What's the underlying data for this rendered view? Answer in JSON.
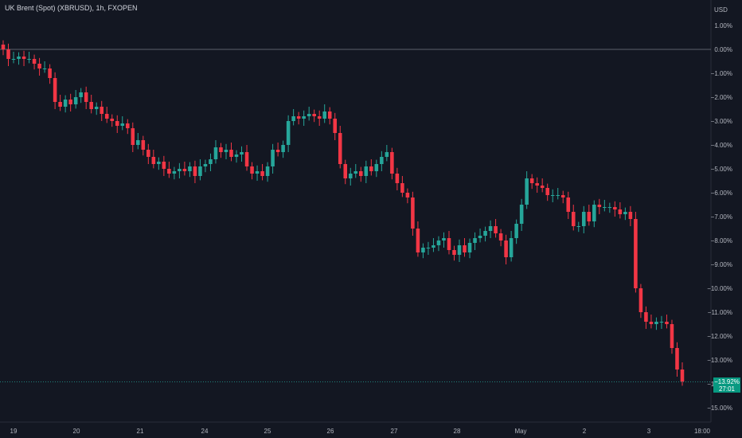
{
  "header": {
    "title": "UK Brent (Spot) (XBRUSD), 1h, FXOPEN",
    "currency": "USD"
  },
  "price_tag": {
    "value": "−13.92%",
    "countdown": "27:01"
  },
  "colors": {
    "up": "#26a69a",
    "down": "#f23645",
    "bg": "#131722",
    "axis_text": "#b2b5be"
  },
  "chart_data": {
    "type": "candlestick",
    "title": "UK Brent (Spot) (XBRUSD), 1h, FXOPEN",
    "ylabel": "USD",
    "ylim": [
      -15.5,
      1.6
    ],
    "yticks": [
      "1.00%",
      "0.00%",
      "−1.00%",
      "−2.00%",
      "−3.00%",
      "−4.00%",
      "−5.00%",
      "−6.00%",
      "−7.00%",
      "−8.00%",
      "−9.00%",
      "−10.00%",
      "−11.00%",
      "−12.00%",
      "−13.00%",
      "−14.00%",
      "−15.00%"
    ],
    "ytick_values": [
      1,
      0,
      -1,
      -2,
      -3,
      -4,
      -5,
      -6,
      -7,
      -8,
      -9,
      -10,
      -11,
      -12,
      -13,
      -14,
      -15
    ],
    "xticks": [
      "19",
      "20",
      "21",
      "24",
      "25",
      "26",
      "27",
      "28",
      "May",
      "2",
      "3",
      "18:00"
    ],
    "baseline": 0,
    "last_value": -13.92,
    "series": [
      {
        "name": "",
        "values": [
          0.0,
          -0.4,
          -0.4,
          -0.3,
          -0.4,
          -0.4,
          -0.6,
          -0.8,
          -0.8,
          -1.2,
          -2.2,
          -2.4,
          -2.1,
          -2.3,
          -2.0,
          -1.8,
          -2.2,
          -2.5,
          -2.4,
          -2.7,
          -2.9,
          -3.0,
          -3.2,
          -3.1,
          -3.3,
          -4.0,
          -3.8,
          -4.2,
          -4.5,
          -4.8,
          -4.7,
          -5.0,
          -5.2,
          -5.1,
          -5.0,
          -5.1,
          -4.9,
          -5.3,
          -4.9,
          -4.8,
          -4.6,
          -4.1,
          -4.3,
          -4.2,
          -4.5,
          -4.4,
          -4.3,
          -4.9,
          -5.2,
          -5.1,
          -5.3,
          -4.9,
          -4.2,
          -4.3,
          -4.0,
          -3.0,
          -2.8,
          -2.9,
          -2.8,
          -2.7,
          -2.8,
          -2.9,
          -2.6,
          -2.9,
          -3.5,
          -4.8,
          -5.4,
          -5.2,
          -5.1,
          -5.3,
          -4.9,
          -5.1,
          -4.8,
          -4.5,
          -4.3,
          -5.2,
          -5.6,
          -6.0,
          -6.2,
          -7.5,
          -8.5,
          -8.3,
          -8.3,
          -8.2,
          -8.0,
          -7.9,
          -8.4,
          -8.6,
          -8.2,
          -8.5,
          -8.1,
          -7.9,
          -7.8,
          -7.6,
          -7.4,
          -7.7,
          -8.0,
          -8.7,
          -7.9,
          -7.3,
          -6.5,
          -5.4,
          -5.6,
          -5.7,
          -5.8,
          -6.1,
          -6.1,
          -6.1,
          -6.2,
          -6.8,
          -7.4,
          -7.4,
          -6.8,
          -7.2,
          -6.5,
          -6.6,
          -6.6,
          -6.6,
          -6.7,
          -6.9,
          -6.8,
          -7.1,
          -10.0,
          -11.0,
          -11.4,
          -11.5,
          -11.4,
          -11.4,
          -11.5,
          -12.5,
          -13.4,
          -13.9
        ]
      }
    ]
  }
}
